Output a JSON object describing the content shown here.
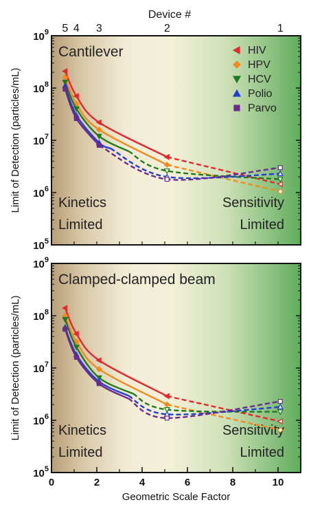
{
  "top_axis": {
    "label": "Device #",
    "ticks": [
      {
        "label": "5",
        "x": 0.6
      },
      {
        "label": "4",
        "x": 1.1
      },
      {
        "label": "3",
        "x": 2.1
      },
      {
        "label": "2",
        "x": 5.1
      },
      {
        "label": "1",
        "x": 10.1
      }
    ]
  },
  "legend": {
    "entries": [
      {
        "name": "HIV",
        "marker": "triangle-left"
      },
      {
        "name": "HPV",
        "marker": "diamond"
      },
      {
        "name": "HCV",
        "marker": "triangle-down"
      },
      {
        "name": "Polio",
        "marker": "triangle-up"
      },
      {
        "name": "Parvo",
        "marker": "square"
      }
    ]
  },
  "colors": {
    "HIV": "#e8262b",
    "HPV": "#f28a1e",
    "HCV": "#1f7a1f",
    "Polio": "#1f3fd1",
    "Parvo": "#6a2a8f"
  },
  "chart_data": [
    {
      "type": "line",
      "title": "Cantilever",
      "xlabel": "Geometric Scale Factor",
      "ylabel": "Limit of Detection (particles/mL)",
      "xlim": [
        0,
        11
      ],
      "ylim": [
        100000,
        1000000000
      ],
      "yscale": "log",
      "yticks": [
        {
          "value": 100000,
          "base": "10",
          "exp": "5"
        },
        {
          "value": 1000000,
          "base": "10",
          "exp": "6"
        },
        {
          "value": 10000000,
          "base": "10",
          "exp": "7"
        },
        {
          "value": 100000000,
          "base": "10",
          "exp": "8"
        },
        {
          "value": 1000000000,
          "base": "10",
          "exp": "9"
        }
      ],
      "annotations": [
        {
          "lines": [
            "Kinetics",
            "Limited"
          ],
          "position": "bottom-left"
        },
        {
          "lines": [
            "Sensitivity",
            "Limited"
          ],
          "position": "bottom-right"
        }
      ],
      "series": [
        {
          "name": "HIV",
          "x": [
            0.6,
            1.1,
            2.1,
            5.1,
            10.1
          ],
          "y": [
            210000000,
            70000000,
            22000000,
            4800000,
            1450000
          ],
          "solid_until": 5.1
        },
        {
          "name": "HPV",
          "x": [
            0.6,
            1.1,
            2.1,
            5.1,
            10.1
          ],
          "y": [
            160000000,
            50000000,
            16000000,
            3400000,
            1050000
          ],
          "solid_until": 5.1
        },
        {
          "name": "HCV",
          "x": [
            0.6,
            1.1,
            2.1,
            5.1,
            10.1
          ],
          "y": [
            130000000,
            40000000,
            12000000,
            2600000,
            1800000
          ],
          "solid_until": 3.4
        },
        {
          "name": "Polio",
          "x": [
            0.6,
            1.1,
            2.1,
            5.1,
            10.1
          ],
          "y": [
            110000000,
            30000000,
            9000000,
            2000000,
            2300000
          ],
          "solid_until": 2.6
        },
        {
          "name": "Parvo",
          "x": [
            0.6,
            1.1,
            2.1,
            5.1,
            10.1
          ],
          "y": [
            95000000,
            26000000,
            8000000,
            1800000,
            3000000
          ],
          "solid_until": 2.1
        }
      ]
    },
    {
      "type": "line",
      "title": "Clamped-clamped beam",
      "xlabel": "Geometric Scale Factor",
      "ylabel": "Limit of Detection (particles/mL)",
      "xlim": [
        0,
        11
      ],
      "ylim": [
        100000,
        1000000000
      ],
      "yscale": "log",
      "xticks": [
        0,
        2,
        4,
        6,
        8,
        10
      ],
      "yticks": [
        {
          "value": 100000,
          "base": "10",
          "exp": "5"
        },
        {
          "value": 1000000,
          "base": "10",
          "exp": "6"
        },
        {
          "value": 10000000,
          "base": "10",
          "exp": "7"
        },
        {
          "value": 100000000,
          "base": "10",
          "exp": "8"
        },
        {
          "value": 1000000000,
          "base": "10",
          "exp": "9"
        }
      ],
      "annotations": [
        {
          "lines": [
            "Kinetics",
            "Limited"
          ],
          "position": "bottom-left"
        },
        {
          "lines": [
            "Sensitivity",
            "Limited"
          ],
          "position": "bottom-right"
        }
      ],
      "series": [
        {
          "name": "HIV",
          "x": [
            0.6,
            1.1,
            2.1,
            5.1,
            10.1
          ],
          "y": [
            140000000,
            45000000,
            14000000,
            2900000,
            950000
          ],
          "solid_until": 5.1
        },
        {
          "name": "HPV",
          "x": [
            0.6,
            1.1,
            2.1,
            5.1,
            10.1
          ],
          "y": [
            100000000,
            32000000,
            9500000,
            2000000,
            650000
          ],
          "solid_until": 5.1
        },
        {
          "name": "HCV",
          "x": [
            0.6,
            1.1,
            2.1,
            5.1,
            10.1
          ],
          "y": [
            85000000,
            25000000,
            6500000,
            1600000,
            1450000
          ],
          "solid_until": 3.6
        },
        {
          "name": "Polio",
          "x": [
            0.6,
            1.1,
            2.1,
            5.1,
            10.1
          ],
          "y": [
            60000000,
            18000000,
            5500000,
            1300000,
            1800000
          ],
          "solid_until": 3.4
        },
        {
          "name": "Parvo",
          "x": [
            0.6,
            1.1,
            2.1,
            5.1,
            10.1
          ],
          "y": [
            55000000,
            16000000,
            5000000,
            1100000,
            2300000
          ],
          "solid_until": 3.4
        }
      ]
    }
  ]
}
